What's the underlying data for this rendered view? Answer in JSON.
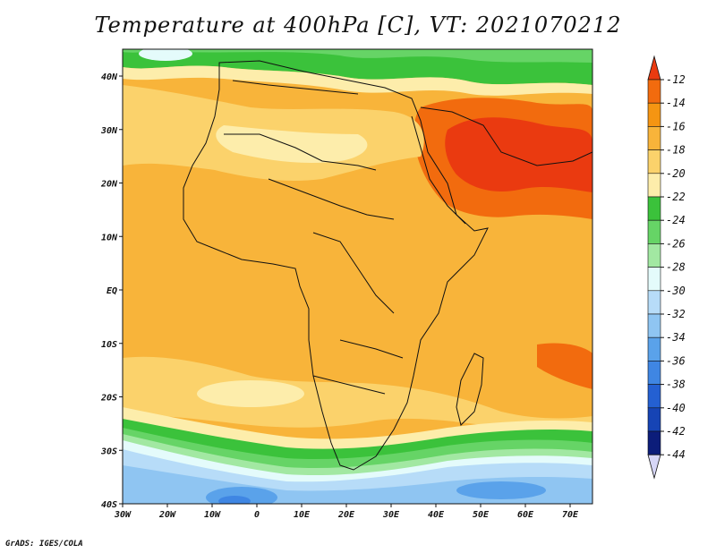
{
  "title": "Temperature at 400hPa [C], VT: 2021070212",
  "credit": "GrADS: IGES/COLA",
  "map": {
    "lon_labels": [
      "30W",
      "20W",
      "10W",
      "0",
      "10E",
      "20E",
      "30E",
      "40E",
      "50E",
      "60E",
      "70E"
    ],
    "lat_labels": [
      "40N",
      "30N",
      "20N",
      "10N",
      "EQ",
      "10S",
      "20S",
      "30S",
      "40S"
    ]
  },
  "colorbar": {
    "labels": [
      "-12",
      "-14",
      "-16",
      "-18",
      "-20",
      "-22",
      "-24",
      "-26",
      "-28",
      "-30",
      "-32",
      "-34",
      "-36",
      "-38",
      "-40",
      "-42",
      "-44"
    ],
    "colors": [
      "#ea3a10",
      "#f26b0e",
      "#f59512",
      "#f8b43a",
      "#fbd26b",
      "#fdedab",
      "#3bc23b",
      "#66d466",
      "#a2e8a2",
      "#e4fbfb",
      "#b7dcf8",
      "#8fc5f2",
      "#5aa2ea",
      "#3f86e3",
      "#2460d2",
      "#1644b5",
      "#0c1d7a"
    ]
  }
}
